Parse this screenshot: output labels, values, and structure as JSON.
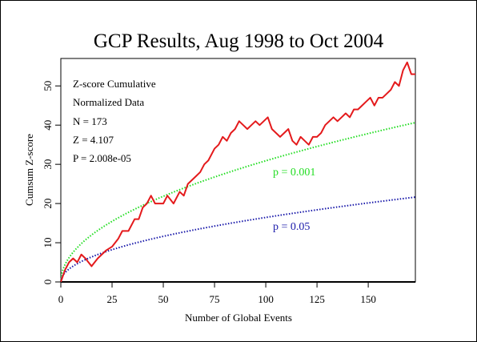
{
  "chart_data": {
    "type": "line",
    "title": "GCP Results, Aug 1998 to Oct 2004",
    "xlabel": "Number of Global Events",
    "ylabel": "Cumsum Z-score",
    "xlim": [
      0,
      173
    ],
    "ylim": [
      0,
      57
    ],
    "x_ticks": [
      0,
      25,
      50,
      75,
      100,
      125,
      150
    ],
    "y_ticks": [
      0,
      10,
      20,
      30,
      40,
      50
    ],
    "grid": false,
    "stats": {
      "line1": "Z-score Cumulative",
      "line2": "Normalized Data",
      "line3": "N = 173",
      "line4": "Z = 4.107",
      "line5": "P = 2.008e-05"
    },
    "annotations": {
      "p001": "p = 0.001",
      "p05": "p = 0.05"
    },
    "colors": {
      "cumsum": "#e41a1c",
      "p001": "#22dd22",
      "p05": "#1a1aaa",
      "baseline": "#000000"
    },
    "series": [
      {
        "style": "solid",
        "x": [
          0,
          2,
          4,
          6,
          8,
          10,
          12,
          15,
          18,
          20,
          22,
          25,
          28,
          30,
          33,
          36,
          38,
          40,
          42,
          44,
          46,
          48,
          50,
          52,
          55,
          58,
          60,
          62,
          64,
          66,
          68,
          70,
          72,
          75,
          77,
          79,
          81,
          83,
          85,
          87,
          89,
          91,
          93,
          95,
          97,
          99,
          101,
          103,
          105,
          107,
          109,
          111,
          113,
          115,
          117,
          119,
          121,
          123,
          125,
          127,
          129,
          131,
          133,
          135,
          137,
          139,
          141,
          143,
          145,
          147,
          149,
          151,
          153,
          155,
          157,
          159,
          161,
          163,
          165,
          167,
          169,
          171,
          173
        ],
        "values": [
          0,
          3,
          5,
          6,
          5,
          7,
          6,
          4,
          6,
          7,
          8,
          9,
          11,
          13,
          13,
          16,
          16,
          19,
          20,
          22,
          20,
          20,
          20,
          22,
          20,
          23,
          22,
          25,
          26,
          27,
          28,
          30,
          31,
          34,
          35,
          37,
          36,
          38,
          39,
          41,
          40,
          39,
          40,
          41,
          40,
          41,
          42,
          39,
          38,
          37,
          38,
          39,
          36,
          35,
          37,
          36,
          35,
          37,
          37,
          38,
          40,
          41,
          42,
          41,
          42,
          43,
          42,
          44,
          44,
          45,
          46,
          47,
          45,
          47,
          47,
          48,
          49,
          51,
          50,
          54,
          56,
          53,
          53
        ]
      },
      {
        "style": "dotted",
        "formula": "3.09 * sqrt(n)",
        "label": "p = 0.001"
      },
      {
        "style": "dotted",
        "formula": "1.645 * sqrt(n)",
        "label": "p = 0.05"
      }
    ]
  }
}
